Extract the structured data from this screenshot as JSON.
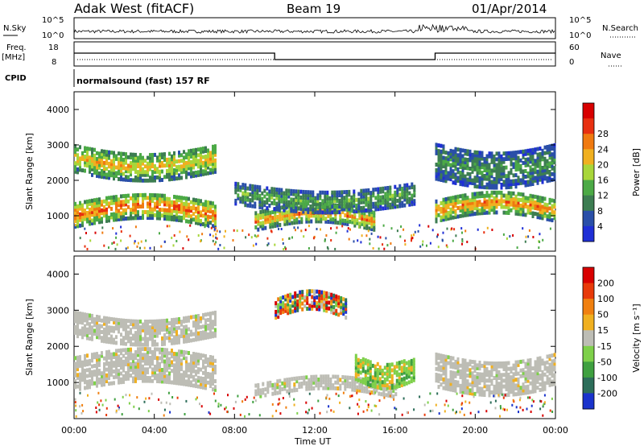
{
  "header": {
    "left": "Adak West (fitACF)",
    "center": "Beam 19",
    "right": "01/Apr/2014"
  },
  "nsky_panel": {
    "left_label": "N.Sky",
    "right_label": "N.Search",
    "y_ticks_left": [
      "10^5",
      "10^0"
    ],
    "y_ticks_right": [
      "10^5",
      "10^0"
    ]
  },
  "freq_panel": {
    "left_label_top": "Freq.",
    "left_label_unit": "[MHz]",
    "right_label": "Nave",
    "y_ticks_left": [
      "18",
      "8"
    ],
    "y_ticks_right": [
      "60",
      "0"
    ],
    "freq_profile": {
      "high_until_h": 10,
      "low_until_h": 18
    }
  },
  "cpid": {
    "label": "CPID",
    "program": "normalsound (fast) 157 RF"
  },
  "x_axis": {
    "label": "Time UT",
    "ticks": [
      "00:00",
      "04:00",
      "08:00",
      "12:00",
      "16:00",
      "20:00",
      "00:00"
    ],
    "range_hours": [
      0,
      24
    ]
  },
  "chart_data": [
    {
      "type": "heatmap",
      "title": "",
      "ylabel": "Slant Range [km]",
      "yticks": [
        "1000",
        "2000",
        "3000",
        "4000"
      ],
      "ylim": [
        0,
        4500
      ],
      "colorbar": {
        "label": "Power [dB]",
        "ticks": [
          "4",
          "8",
          "12",
          "16",
          "20",
          "24",
          "28"
        ],
        "colors": [
          "#1f2fd6",
          "#2a4fa8",
          "#3d7d52",
          "#4caa46",
          "#a8d63a",
          "#f0b020",
          "#f07a10",
          "#e83010",
          "#d80000"
        ]
      },
      "echo_bands": [
        {
          "name": "band1",
          "t0": 0,
          "t1": 7,
          "r_center": 1100,
          "r_width": 350,
          "level": 26
        },
        {
          "name": "band2",
          "t0": 0,
          "t1": 7,
          "r_center": 2700,
          "r_width": 400,
          "level": 20
        },
        {
          "name": "band3",
          "t0": 9,
          "t1": 15,
          "r_center": 900,
          "r_width": 250,
          "level": 24
        },
        {
          "name": "band4",
          "t0": 8,
          "t1": 17,
          "r_center": 1700,
          "r_width": 300,
          "level": 12
        },
        {
          "name": "band5",
          "t0": 18,
          "t1": 24,
          "r_center": 1200,
          "r_width": 300,
          "level": 24
        },
        {
          "name": "band6",
          "t0": 18,
          "t1": 24,
          "r_center": 2600,
          "r_width": 500,
          "level": 10
        }
      ]
    },
    {
      "type": "heatmap",
      "title": "",
      "ylabel": "Slant Range [km]",
      "yticks": [
        "1000",
        "2000",
        "3000",
        "4000"
      ],
      "ylim": [
        0,
        4500
      ],
      "colorbar": {
        "label": "Velocity [m s⁻¹]",
        "ticks": [
          "200",
          "100",
          "50",
          "15",
          "-15",
          "-50",
          "-100",
          "-200"
        ],
        "colors": [
          "#1a33cc",
          "#2d6e5a",
          "#3fa040",
          "#7ed04a",
          "#bdbdb5",
          "#f0b020",
          "#f08010",
          "#e83a0a",
          "#d80000"
        ]
      },
      "echo_bands": [
        {
          "name": "vband1",
          "t0": 0,
          "t1": 7,
          "r_center": 1300,
          "r_width": 450,
          "level": "ground"
        },
        {
          "name": "vband2",
          "t0": 0,
          "t1": 7,
          "r_center": 2700,
          "r_width": 350,
          "level": "ground"
        },
        {
          "name": "vband3",
          "t0": 9,
          "t1": 16,
          "r_center": 850,
          "r_width": 200,
          "level": "ground"
        },
        {
          "name": "vband4",
          "t0": 14,
          "t1": 17,
          "r_center": 1500,
          "r_width": 350,
          "level": "positive"
        },
        {
          "name": "vband5",
          "t0": 10,
          "t1": 13.5,
          "r_center": 3100,
          "r_width": 250,
          "level": "mixed"
        },
        {
          "name": "vband6",
          "t0": 18,
          "t1": 24,
          "r_center": 1400,
          "r_width": 450,
          "level": "ground"
        }
      ]
    }
  ]
}
